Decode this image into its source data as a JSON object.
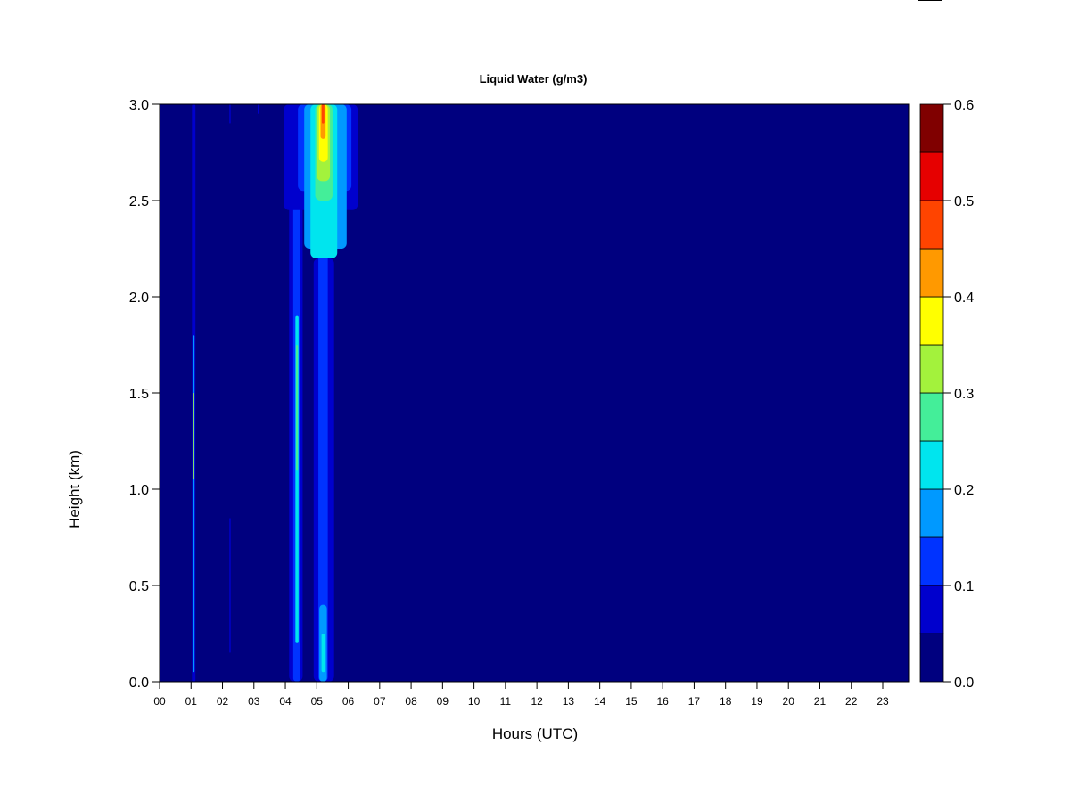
{
  "chart_data": {
    "type": "heatmap",
    "title": "Liquid Water (g/m3)",
    "xlabel": "Hours (UTC)",
    "ylabel": "Height (km)",
    "x_ticks": [
      "00",
      "01",
      "02",
      "03",
      "04",
      "05",
      "06",
      "07",
      "08",
      "09",
      "10",
      "11",
      "12",
      "13",
      "14",
      "15",
      "16",
      "17",
      "18",
      "19",
      "20",
      "21",
      "22",
      "23"
    ],
    "xlim": [
      0,
      23.85
    ],
    "y_ticks": [
      "0.0",
      "0.5",
      "1.0",
      "1.5",
      "2.0",
      "2.5",
      "3.0"
    ],
    "y_tick_values": [
      0,
      0.5,
      1.0,
      1.5,
      2.0,
      2.5,
      3.0
    ],
    "ylim": [
      0,
      3.0
    ],
    "colorbar": {
      "levels": [
        0,
        0.05,
        0.1,
        0.15,
        0.2,
        0.25,
        0.3,
        0.35,
        0.4,
        0.45,
        0.5,
        0.55,
        0.6
      ],
      "tick_labels": [
        "0.0",
        "0.1",
        "0.2",
        "0.3",
        "0.4",
        "0.5",
        "0.6"
      ],
      "tick_values": [
        0,
        0.1,
        0.2,
        0.3,
        0.4,
        0.5,
        0.6
      ],
      "colors": [
        "#00007f",
        "#0000cd",
        "#0033ff",
        "#0099ff",
        "#00e5ee",
        "#44ee99",
        "#a3f23c",
        "#ffff00",
        "#ff9900",
        "#ff4400",
        "#e60000",
        "#800000"
      ]
    },
    "background_color": "#00007f",
    "features": [
      {
        "name": "narrow-plume-0110",
        "x0": 1.03,
        "x1": 1.14,
        "y0": 0.0,
        "y1": 3.0,
        "value": 0.07
      },
      {
        "name": "narrow-core-0110",
        "x0": 1.06,
        "x1": 1.11,
        "y0": 0.05,
        "y1": 1.8,
        "value": 0.16
      },
      {
        "name": "narrow-peak-0110",
        "x0": 1.07,
        "x1": 1.1,
        "y0": 1.05,
        "y1": 1.5,
        "value": 0.3
      },
      {
        "name": "faint-line-0220a",
        "x0": 2.22,
        "x1": 2.26,
        "y0": 0.15,
        "y1": 0.85,
        "value": 0.06
      },
      {
        "name": "faint-line-0220b",
        "x0": 2.22,
        "x1": 2.26,
        "y0": 2.9,
        "y1": 3.0,
        "value": 0.06
      },
      {
        "name": "faint-line-0310",
        "x0": 3.12,
        "x1": 3.15,
        "y0": 2.95,
        "y1": 3.0,
        "value": 0.06
      },
      {
        "name": "column-0420-outer",
        "x0": 4.12,
        "x1": 4.55,
        "y0": 0.0,
        "y1": 3.0,
        "value": 0.07
      },
      {
        "name": "column-0420-mid",
        "x0": 4.25,
        "x1": 4.48,
        "y0": 0.0,
        "y1": 3.0,
        "value": 0.12
      },
      {
        "name": "column-0420-core",
        "x0": 4.32,
        "x1": 4.42,
        "y0": 0.2,
        "y1": 1.9,
        "value": 0.2
      },
      {
        "name": "column-0420-peak",
        "x0": 4.34,
        "x1": 4.4,
        "y0": 1.1,
        "y1": 1.75,
        "value": 0.27
      },
      {
        "name": "column-0515-outer",
        "x0": 4.9,
        "x1": 5.55,
        "y0": 0.0,
        "y1": 2.2,
        "value": 0.07
      },
      {
        "name": "column-0515-inner",
        "x0": 5.05,
        "x1": 5.35,
        "y0": 0.0,
        "y1": 3.0,
        "value": 0.12
      },
      {
        "name": "column-0515-base",
        "x0": 5.08,
        "x1": 5.32,
        "y0": 0.0,
        "y1": 0.4,
        "value": 0.18
      },
      {
        "name": "column-0515-base-peak",
        "x0": 5.15,
        "x1": 5.26,
        "y0": 0.05,
        "y1": 0.25,
        "value": 0.24
      },
      {
        "name": "plume-top-outer",
        "x0": 3.95,
        "x1": 6.3,
        "y0": 2.45,
        "y1": 3.0,
        "value": 0.06
      },
      {
        "name": "plume-top-level1",
        "x0": 4.4,
        "x1": 6.1,
        "y0": 2.55,
        "y1": 3.0,
        "value": 0.11
      },
      {
        "name": "plume-top-level2",
        "x0": 4.6,
        "x1": 5.95,
        "y0": 2.25,
        "y1": 3.0,
        "value": 0.16
      },
      {
        "name": "plume-top-level3",
        "x0": 4.8,
        "x1": 5.65,
        "y0": 2.2,
        "y1": 3.0,
        "value": 0.21
      },
      {
        "name": "plume-top-level4",
        "x0": 4.95,
        "x1": 5.5,
        "y0": 2.5,
        "y1": 3.0,
        "value": 0.27
      },
      {
        "name": "plume-top-level5",
        "x0": 5.0,
        "x1": 5.42,
        "y0": 2.6,
        "y1": 3.0,
        "value": 0.32
      },
      {
        "name": "plume-top-level6",
        "x0": 5.07,
        "x1": 5.35,
        "y0": 2.7,
        "y1": 3.0,
        "value": 0.37
      },
      {
        "name": "plume-top-level7",
        "x0": 5.12,
        "x1": 5.28,
        "y0": 2.82,
        "y1": 3.0,
        "value": 0.42
      },
      {
        "name": "plume-top-level8",
        "x0": 5.16,
        "x1": 5.24,
        "y0": 2.9,
        "y1": 3.0,
        "value": 0.47
      }
    ]
  }
}
